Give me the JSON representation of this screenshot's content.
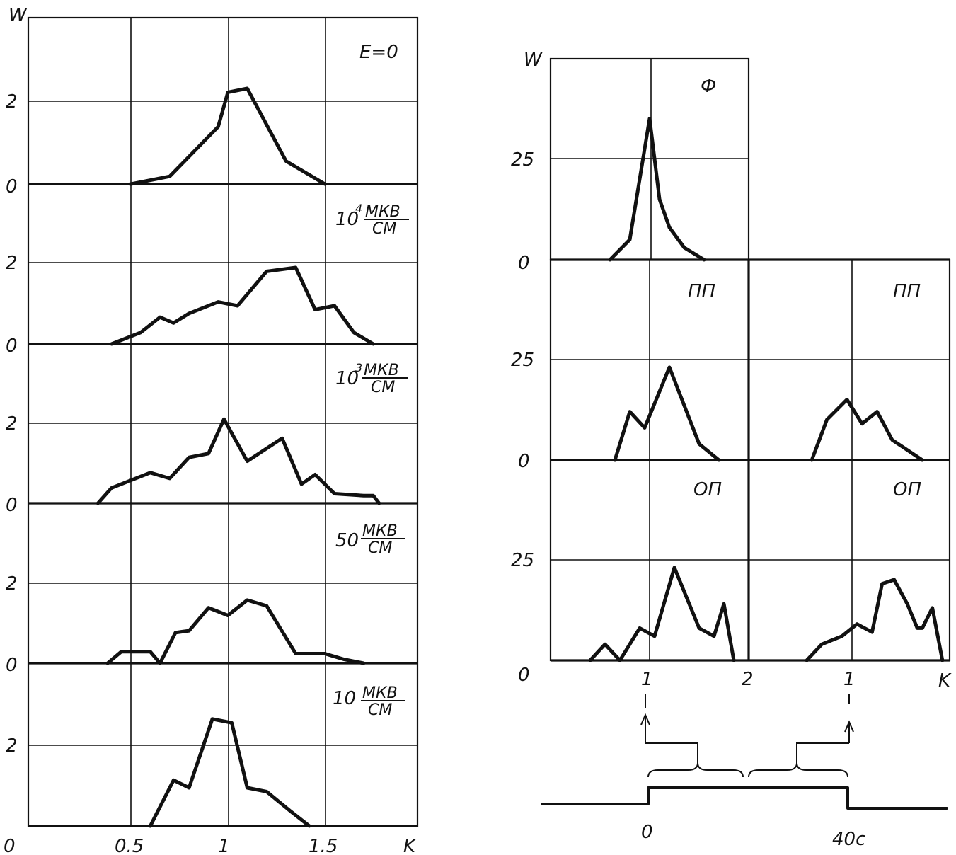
{
  "left": {
    "y_axis_label": "W",
    "x_axis_label": "K",
    "x_ticks": [
      "0.5",
      "1",
      "1.5"
    ],
    "x_origin_label": "0",
    "y_tick_labels": [
      "2",
      "0"
    ]
  },
  "panel_labels": {
    "p1": "E=0",
    "p2_base": "10",
    "p2_exp": "4",
    "p2_num": "МКВ",
    "p2_den": "СМ",
    "p3_base": "10",
    "p3_exp": "3",
    "p3_num": "МКВ",
    "p3_den": "СМ",
    "p4_base": "50",
    "p4_num": "МКВ",
    "p4_den": "СМ",
    "p5_base": "10",
    "p5_num": "МКВ",
    "p5_den": "СМ"
  },
  "right": {
    "y_axis_label": "W",
    "x_axis_label": "K",
    "y_tick_labels": [
      "25",
      "0"
    ],
    "x_ticks_left": [
      "1",
      "2"
    ],
    "x_ticks_right": [
      "1"
    ],
    "panel_F": "Ф",
    "panel_PP": "ПП",
    "panel_OP": "ОП",
    "time_start": "0",
    "time_end": "40с"
  },
  "chart_data": [
    {
      "type": "line",
      "title": "E=0",
      "xlabel": "K",
      "ylabel": "W",
      "xlim": [
        0,
        2
      ],
      "ylim": [
        0,
        3
      ],
      "x": [
        0.5,
        0.7,
        0.95,
        1.0,
        1.1,
        1.3,
        1.5
      ],
      "y": [
        0,
        0.2,
        1.5,
        2.4,
        2.5,
        0.6,
        0
      ]
    },
    {
      "type": "line",
      "title": "10^4 МКВ/СМ",
      "xlabel": "K",
      "ylabel": "W",
      "xlim": [
        0,
        2
      ],
      "ylim": [
        0,
        3
      ],
      "x": [
        0.4,
        0.55,
        0.65,
        0.72,
        0.8,
        0.95,
        1.05,
        1.2,
        1.35,
        1.45,
        1.55,
        1.65,
        1.75
      ],
      "y": [
        0,
        0.3,
        0.7,
        0.55,
        0.8,
        1.1,
        1.0,
        1.9,
        2.0,
        0.9,
        1.0,
        0.3,
        0
      ]
    },
    {
      "type": "line",
      "title": "10^3 МКВ/СМ",
      "xlabel": "K",
      "ylabel": "W",
      "xlim": [
        0,
        2
      ],
      "ylim": [
        0,
        3
      ],
      "x": [
        0.33,
        0.4,
        0.5,
        0.6,
        0.7,
        0.8,
        0.9,
        0.98,
        1.1,
        1.28,
        1.38,
        1.45,
        1.55,
        1.7,
        1.75,
        1.78
      ],
      "y": [
        0,
        0.4,
        0.6,
        0.8,
        0.65,
        1.2,
        1.3,
        2.2,
        1.1,
        1.7,
        0.5,
        0.75,
        0.25,
        0.2,
        0.2,
        0
      ]
    },
    {
      "type": "line",
      "title": "50 МКВ/СМ",
      "xlabel": "K",
      "ylabel": "W",
      "xlim": [
        0,
        2
      ],
      "ylim": [
        0,
        3
      ],
      "x": [
        0.38,
        0.45,
        0.6,
        0.65,
        0.73,
        0.8,
        0.9,
        1.0,
        1.1,
        1.2,
        1.35,
        1.45,
        1.5,
        1.6,
        1.7
      ],
      "y": [
        0,
        0.3,
        0.3,
        0,
        0.8,
        0.85,
        1.45,
        1.25,
        1.65,
        1.5,
        0.25,
        0.25,
        0.25,
        0.1,
        0
      ]
    },
    {
      "type": "line",
      "title": "10 МКВ/СМ",
      "xlabel": "K",
      "ylabel": "W",
      "xlim": [
        0,
        2
      ],
      "ylim": [
        0,
        3
      ],
      "x": [
        0.6,
        0.72,
        0.8,
        0.92,
        1.02,
        1.1,
        1.2,
        1.32,
        1.42
      ],
      "y": [
        0,
        1.2,
        1.0,
        2.8,
        2.7,
        1.0,
        0.9,
        0.4,
        0
      ]
    },
    {
      "type": "line",
      "title": "Ф",
      "xlabel": "K",
      "ylabel": "W",
      "xlim": [
        0,
        2
      ],
      "ylim": [
        0,
        50
      ],
      "x": [
        0.6,
        0.8,
        1.0,
        1.1,
        1.2,
        1.35,
        1.55
      ],
      "y": [
        0,
        5,
        35,
        15,
        8,
        3,
        0
      ]
    },
    {
      "type": "line",
      "title": "ПП",
      "xlabel": "K",
      "ylabel": "W",
      "xlim": [
        0,
        2
      ],
      "ylim": [
        0,
        50
      ],
      "x": [
        0.65,
        0.8,
        0.95,
        1.2,
        1.5,
        1.7
      ],
      "y": [
        0,
        12,
        8,
        23,
        4,
        0
      ]
    },
    {
      "type": "line",
      "title": "ПП",
      "xlabel": "K",
      "ylabel": "W",
      "xlim": [
        0,
        2
      ],
      "ylim": [
        0,
        50
      ],
      "x": [
        0.6,
        0.75,
        0.95,
        1.1,
        1.25,
        1.4,
        1.7
      ],
      "y": [
        0,
        10,
        15,
        9,
        12,
        5,
        0
      ]
    },
    {
      "type": "line",
      "title": "ОП",
      "xlabel": "K",
      "ylabel": "W",
      "xlim": [
        0,
        2
      ],
      "ylim": [
        0,
        50
      ],
      "x": [
        0.4,
        0.55,
        0.7,
        0.9,
        1.05,
        1.25,
        1.5,
        1.65,
        1.75,
        1.85
      ],
      "y": [
        0,
        4,
        0,
        8,
        6,
        23,
        8,
        6,
        14,
        0
      ]
    },
    {
      "type": "line",
      "title": "ОП",
      "xlabel": "K",
      "ylabel": "W",
      "xlim": [
        0,
        2
      ],
      "ylim": [
        0,
        50
      ],
      "x": [
        0.55,
        0.7,
        0.9,
        1.05,
        1.2,
        1.3,
        1.42,
        1.55,
        1.65,
        1.7,
        1.8,
        1.9
      ],
      "y": [
        0,
        4,
        6,
        9,
        7,
        19,
        20,
        14,
        8,
        8,
        13,
        0
      ]
    }
  ]
}
